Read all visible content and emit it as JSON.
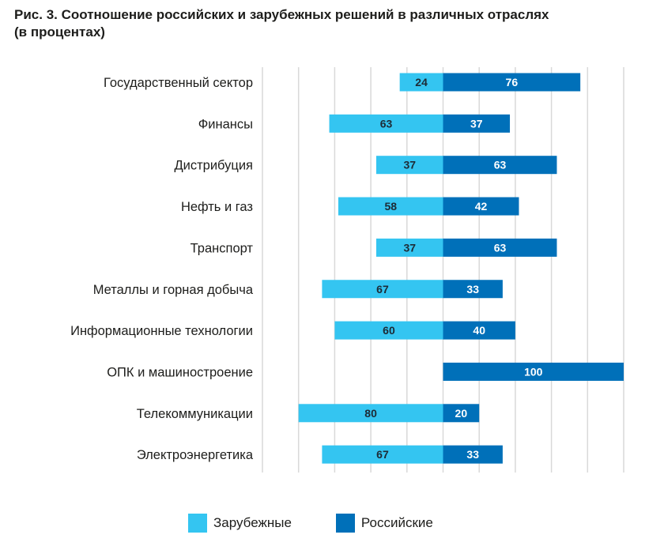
{
  "chart_data": {
    "type": "bar",
    "orientation": "horizontal-diverging",
    "title_lines": [
      "Рис. 3. Соотношение российских и зарубежных решений в различных отраслях",
      "(в процентах)"
    ],
    "categories": [
      "Государственный сектор",
      "Финансы",
      "Дистрибуция",
      "Нефть и газ",
      "Транспорт",
      "Металлы и горная добыча",
      "Информационные технологии",
      "ОПК и машиностроение",
      "Телекоммуникации",
      "Электроэнергетика"
    ],
    "series": [
      {
        "name": "Зарубежные",
        "color": "#34C5F1",
        "label_color": "#1d2b36",
        "values": [
          24,
          63,
          37,
          58,
          37,
          67,
          60,
          0,
          80,
          67
        ]
      },
      {
        "name": "Российские",
        "color": "#0070B9",
        "label_color": "#ffffff",
        "values": [
          76,
          37,
          63,
          42,
          63,
          33,
          40,
          100,
          20,
          33
        ]
      }
    ],
    "xlim": [
      -100,
      100
    ],
    "grid": true,
    "grid_color": "#d9d9d9",
    "legend_position": "bottom"
  }
}
